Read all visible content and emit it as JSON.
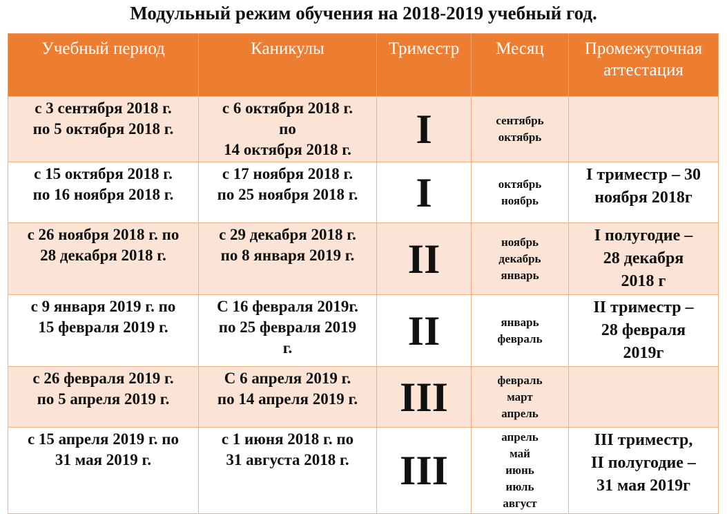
{
  "title": "Модульный режим обучения на 2018-2019 учебный год.",
  "colors": {
    "header": "#ED7D31",
    "row_shaded": "#FBE4D5"
  },
  "headers": [
    "Учебный период",
    "Каникулы",
    "Триместр",
    "Месяц",
    "Промежуточная\nаттестация"
  ],
  "rows": [
    {
      "period": "с 3 сентября 2018 г.\nпо 5 октября 2018 г.",
      "holidays": "с 6 октября 2018 г.\nпо\n14 октября 2018 г.",
      "trimester": "I",
      "months": "сентябрь\nоктябрь",
      "attestation": ""
    },
    {
      "period": "с 15 октября 2018 г.\nпо 16 ноября 2018 г.",
      "holidays": "с 17 ноября 2018 г.\nпо 25 ноября 2018 г.",
      "trimester": "I",
      "months": "октябрь\nноябрь",
      "attestation": "I триместр – 30\nноября 2018г"
    },
    {
      "period": "с 26 ноября 2018 г. по\n28 декабря 2018 г.",
      "holidays": "с 29 декабря 2018 г.\nпо 8 января 2019 г.",
      "trimester": "II",
      "months": "ноябрь\nдекабрь\nянварь",
      "attestation": "I  полугодие –\n28 декабря\n2018 г"
    },
    {
      "period": "с 9 января 2019 г. по\n15 февраля 2019 г.",
      "holidays": "С 16 февраля 2019г.\nпо 25 февраля 2019\nг.",
      "trimester": "II",
      "months": "январь\nфевраль",
      "attestation": "II триместр –\n28 февраля\n2019г"
    },
    {
      "period": "с 26 февраля 2019 г.\nпо 5 апреля 2019 г.",
      "holidays": "С 6 апреля 2019 г.\nпо 14 апреля 2019 г.",
      "trimester": "III",
      "months": "февраль\nмарт\nапрель",
      "attestation": ""
    },
    {
      "period": "с 15 апреля 2019 г. по\n31 мая 2019 г.",
      "holidays": "с 1 июня 2018 г. по\n31 августа 2018 г.",
      "trimester": "III",
      "months": "апрель\nмай\nиюнь\nиюль\nавгуст",
      "attestation": "III триместр,\nII полугодие –\n31 мая 2019г"
    }
  ]
}
